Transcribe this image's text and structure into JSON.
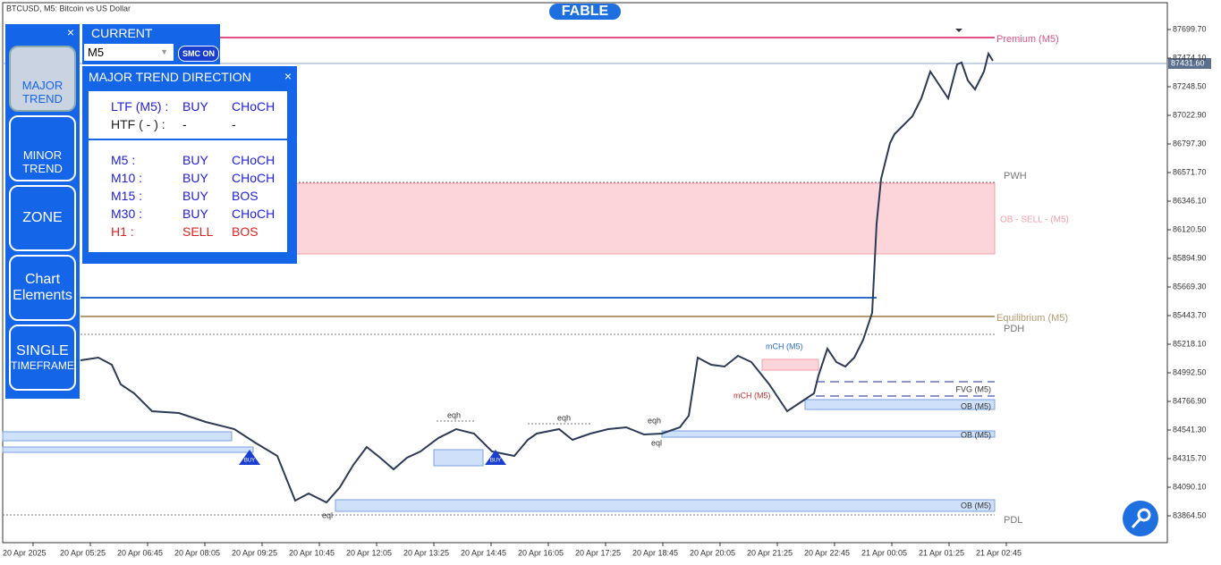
{
  "header": {
    "symbol": "BTCUSD, M5:  Bitcoin vs US Dollar",
    "brand": "FABLE"
  },
  "price_axis": [
    "87699.70",
    "87474.10",
    "87248.50",
    "87022.90",
    "86797.30",
    "86571.70",
    "86346.10",
    "86120.50",
    "85894.90",
    "85669.30",
    "85443.70",
    "85218.10",
    "84992.50",
    "84766.90",
    "84541.30",
    "84315.70",
    "84090.10",
    "83864.50"
  ],
  "current_price": "87431.60",
  "time_axis": [
    "20 Apr 2025",
    "20 Apr 05:25",
    "20 Apr 06:45",
    "20 Apr 08:05",
    "20 Apr 09:25",
    "20 Apr 10:45",
    "20 Apr 12:05",
    "20 Apr 13:25",
    "20 Apr 14:45",
    "20 Apr 16:05",
    "20 Apr 17:25",
    "20 Apr 18:45",
    "20 Apr 20:05",
    "20 Apr 21:25",
    "20 Apr 22:45",
    "21 Apr 00:05",
    "21 Apr 01:25",
    "21 Apr 02:45"
  ],
  "chart_labels": {
    "premium": "Premium (M5)",
    "pwh": "PWH",
    "ob_sell": "OB - SELL -  (M5)",
    "equilibrium": "Equilibrium (M5)",
    "pdh": "PDH",
    "pdl": "PDL",
    "fvg": "FVG (M5)",
    "ob1": "OB (M5)",
    "ob2": "OB (M5)",
    "ob3": "OB (M5)",
    "mch_up": "mCH (M5)",
    "mch_down": "mCH (M5)",
    "eqh1": "eqh",
    "eqh2": "eqh",
    "eqh3": "eqh",
    "eql1": "eql",
    "eql2": "eql",
    "buy1": "BUY",
    "buy2": "BUY"
  },
  "side_menu": {
    "close": "×",
    "buttons": [
      [
        "MAJOR",
        "TREND"
      ],
      [
        "MINOR",
        "TREND"
      ],
      [
        "ZONE"
      ],
      [
        "Chart",
        "Elements"
      ],
      [
        "SINGLE",
        "TIMEFRAME"
      ]
    ]
  },
  "current_panel": {
    "title": "CURRENT",
    "timeframe": "M5",
    "toggle": "SMC ON"
  },
  "trend_panel": {
    "title": "MAJOR TREND DIRECTION",
    "close": "×",
    "top": [
      [
        "LTF (M5) :",
        "BUY",
        "CHoCH"
      ],
      [
        "HTF ( - ) :",
        "-",
        "-"
      ]
    ],
    "rows": [
      [
        "M5 :",
        "BUY",
        "CHoCH"
      ],
      [
        "M10 :",
        "BUY",
        "CHoCH"
      ],
      [
        "M15 :",
        "BUY",
        "BOS"
      ],
      [
        "M30 :",
        "BUY",
        "CHoCH"
      ],
      [
        "H1 :",
        "SELL",
        "BOS"
      ]
    ]
  }
}
